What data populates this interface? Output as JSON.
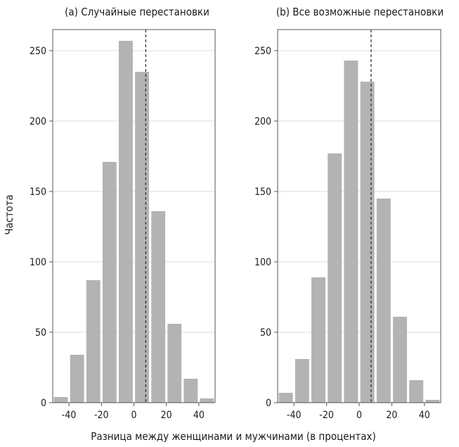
{
  "chart_data": [
    {
      "type": "bar",
      "title": "(a) Случайные перестановки",
      "categories": [
        -45,
        -35,
        -25,
        -15,
        -5,
        5,
        15,
        25,
        35,
        45
      ],
      "values": [
        4,
        34,
        87,
        171,
        257,
        235,
        136,
        56,
        17,
        3
      ],
      "xlim": [
        -50,
        50
      ],
      "ylim": [
        0,
        265
      ],
      "xticks": [
        -40,
        -20,
        0,
        20,
        40
      ],
      "xtick_labels": [
        "-40",
        "-20",
        "0",
        "20",
        "40"
      ],
      "yticks": [
        0,
        50,
        100,
        150,
        200,
        250
      ],
      "ytick_labels": [
        "0",
        "50",
        "100",
        "150",
        "200",
        "250"
      ],
      "reference_line_x": 7.3,
      "grid": true
    },
    {
      "type": "bar",
      "title": "(b) Все возможные перестановки",
      "categories": [
        -45,
        -35,
        -25,
        -15,
        -5,
        5,
        15,
        25,
        35,
        45
      ],
      "values": [
        7,
        31,
        89,
        177,
        243,
        228,
        145,
        61,
        16,
        2
      ],
      "xlim": [
        -50,
        50
      ],
      "ylim": [
        0,
        265
      ],
      "xticks": [
        -40,
        -20,
        0,
        20,
        40
      ],
      "xtick_labels": [
        "-40",
        "-20",
        "0",
        "20",
        "40"
      ],
      "yticks": [
        0,
        50,
        100,
        150,
        200,
        250
      ],
      "ytick_labels": [
        "0",
        "50",
        "100",
        "150",
        "200",
        "250"
      ],
      "reference_line_x": 7.3,
      "grid": true
    }
  ],
  "labels": {
    "ylabel": "Частота",
    "xlabel": "Разница между женщинами и мужчинами (в процентах)"
  },
  "colors": {
    "bar": "#b3b3b3",
    "frame": "#555555",
    "grid": "#dddddd",
    "reference": "#333333"
  }
}
